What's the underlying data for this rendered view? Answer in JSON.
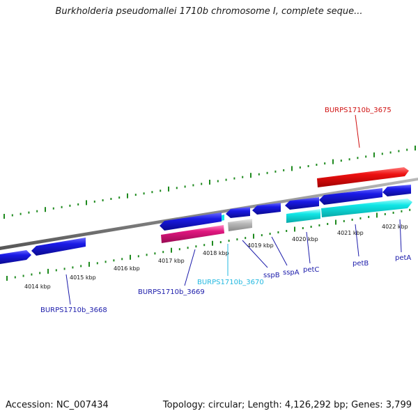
{
  "title": "Burkholderia pseudomallei 1710b chromosome I, complete seque...",
  "footer": {
    "accession_label": "Accession: NC_007434",
    "summary": "Topology: circular; Length: 4,126,292 bp; Genes: 3,799"
  },
  "colors": {
    "backbone": "#888888",
    "tick": "#1e8a1e",
    "gene_cds": "#1a1ae6",
    "gene_highlight": "#ee1111",
    "gene_cyan": "#11e6e6",
    "gene_pink": "#e0177f",
    "gene_gray": "#b8b8b8",
    "label_blue": "#1a1aaa",
    "label_red": "#d01010",
    "label_cyan": "#22b8e0"
  },
  "scale": {
    "unit": "kbp",
    "labels": [
      "4014 kbp",
      "4015 kbp",
      "4016 kbp",
      "4017 kbp",
      "4018 kbp",
      "4019 kbp",
      "4020 kbp",
      "4021 kbp",
      "4022 kbp"
    ]
  },
  "genes": [
    {
      "id": "BURPS1710b_3668",
      "label": "BURPS1710b_3668",
      "color": "gene_cds",
      "label_color": "label_blue"
    },
    {
      "id": "BURPS1710b_3669",
      "label": "BURPS1710b_3669",
      "color": "gene_cds",
      "label_color": "label_blue"
    },
    {
      "id": "BURPS1710b_3670",
      "label": "BURPS1710b_3670",
      "color": "gene_cyan",
      "label_color": "label_cyan"
    },
    {
      "id": "sspB",
      "label": "sspB",
      "color": "gene_cds",
      "label_color": "label_blue"
    },
    {
      "id": "sspA",
      "label": "sspA",
      "color": "gene_cds",
      "label_color": "label_blue"
    },
    {
      "id": "petC",
      "label": "petC",
      "color": "gene_cds",
      "label_color": "label_blue"
    },
    {
      "id": "petB",
      "label": "petB",
      "color": "gene_cds",
      "label_color": "label_blue"
    },
    {
      "id": "petA",
      "label": "petA",
      "color": "gene_cds",
      "label_color": "label_blue"
    },
    {
      "id": "BURPS1710b_3675",
      "label": "BURPS1710b_3675",
      "color": "gene_highlight",
      "label_color": "label_red"
    }
  ]
}
